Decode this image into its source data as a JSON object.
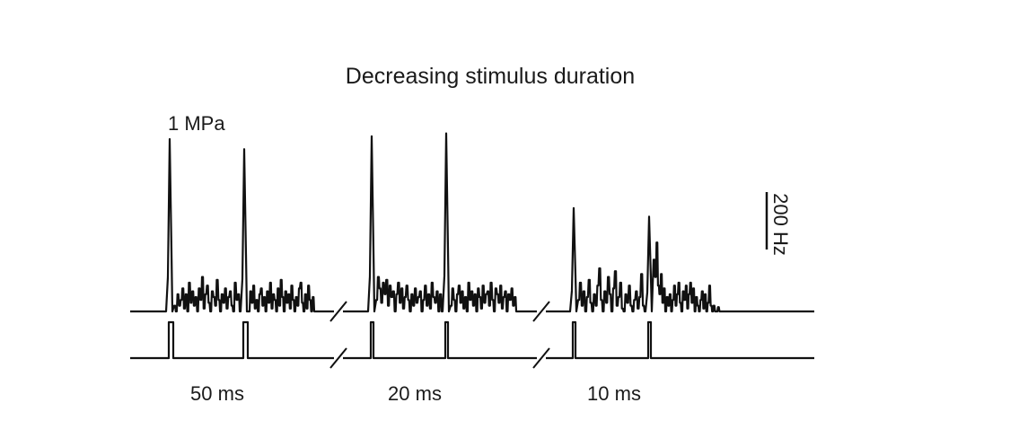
{
  "chart_data": {
    "type": "line",
    "title": "Decreasing stimulus duration",
    "pressure_label": "1 MPa",
    "scale_bar_label": "200 Hz",
    "scale_bar_hz": 200,
    "grid": false,
    "legend": "none",
    "y_unit": "Hz",
    "segments": [
      {
        "duration_label": "50 ms",
        "stimulus_duration_ms": 50,
        "stimuli": [
          {
            "onset_peak_hz": 600,
            "sustained_rates_hz": [
              20,
              0,
              60,
              20,
              40,
              80,
              10,
              60,
              0,
              100,
              30,
              70,
              20,
              50,
              0,
              80,
              40,
              120,
              10,
              60,
              90,
              30,
              0,
              70,
              50,
              20,
              110,
              40,
              0,
              60,
              30,
              80,
              10,
              50,
              70,
              20,
              0,
              100,
              40,
              60
            ]
          },
          {
            "onset_peak_hz": 565,
            "sustained_rates_hz": [
              0,
              70,
              30,
              90,
              10,
              40,
              0,
              60,
              80,
              20,
              50,
              0,
              70,
              30,
              100,
              10,
              60,
              40,
              0,
              80,
              20,
              110,
              50,
              0,
              70,
              30,
              60,
              10,
              90,
              40,
              0,
              50,
              20,
              80,
              100,
              30,
              0,
              60,
              10,
              90,
              40,
              0,
              50
            ]
          }
        ]
      },
      {
        "duration_label": "20 ms",
        "stimulus_duration_ms": 20,
        "stimuli": [
          {
            "onset_peak_hz": 610,
            "sustained_rates_hz": [
              40,
              120,
              80,
              30,
              100,
              60,
              110,
              20,
              90,
              50,
              70,
              0,
              60,
              100,
              30,
              80,
              10,
              50,
              90,
              40,
              0,
              60,
              20,
              80,
              30,
              50,
              70,
              0,
              40,
              90,
              20,
              60,
              10,
              100,
              50,
              30,
              70,
              0,
              60
            ]
          },
          {
            "onset_peak_hz": 620,
            "sustained_rates_hz": [
              20,
              80,
              40,
              0,
              60,
              90,
              30,
              70,
              10,
              50,
              0,
              100,
              40,
              70,
              20,
              60,
              0,
              80,
              50,
              10,
              90,
              30,
              60,
              70,
              20,
              100,
              40,
              0,
              80,
              60,
              30,
              90,
              10,
              50,
              70,
              0,
              60,
              40,
              80,
              20,
              50
            ]
          }
        ]
      },
      {
        "duration_label": "10 ms",
        "stimulus_duration_ms": 10,
        "stimuli": [
          {
            "onset_peak_hz": 360,
            "sustained_rates_hz": [
              40,
              100,
              20,
              70,
              0,
              50,
              110,
              30,
              0,
              60,
              20,
              90,
              150,
              40,
              0,
              70,
              30,
              120,
              60,
              0,
              80,
              140,
              20,
              50,
              100,
              10,
              0,
              60,
              30,
              90,
              20,
              0,
              40,
              70,
              10,
              50,
              130,
              20
            ]
          },
          {
            "onset_peak_hz": 330,
            "sustained_rates_hz": [
              180,
              120,
              240,
              90,
              60,
              130,
              30,
              80,
              0,
              50,
              20,
              60,
              0,
              40,
              90,
              20,
              60,
              100,
              30,
              0,
              70,
              40,
              90,
              10,
              60,
              100,
              30,
              80,
              0,
              50,
              20,
              0,
              40,
              70,
              10,
              60,
              0,
              30,
              90,
              20,
              0,
              20,
              0,
              0,
              15,
              0
            ]
          }
        ]
      }
    ]
  }
}
